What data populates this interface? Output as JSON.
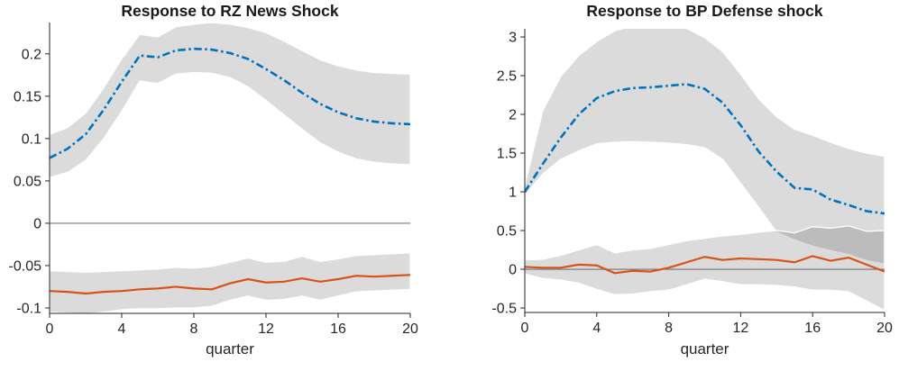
{
  "figure": {
    "background": "#ffffff",
    "axis_color": "#262626",
    "zero_line_color": "#555555",
    "band_fill": "rgba(0,0,0,0.14)",
    "band_edge": "#ffffff"
  },
  "chart_data": [
    {
      "type": "line",
      "title": "Response to RZ News Shock",
      "xlabel": "quarter",
      "legend": "none",
      "grid": false,
      "xlim": [
        0,
        20
      ],
      "ylim": [
        -0.1064,
        0.237
      ],
      "xticks": [
        0,
        4,
        8,
        12,
        16,
        20
      ],
      "xtick_labels": [
        "0",
        "4",
        "8",
        "12",
        "16",
        "20"
      ],
      "yticks": [
        -0.1,
        -0.05,
        0,
        0.05,
        0.1,
        0.15,
        0.2
      ],
      "ytick_labels": [
        "-0.1",
        "-0.05",
        "0",
        "0.05",
        "0.1",
        "0.15",
        "0.2"
      ],
      "zero_line": true,
      "x": [
        0,
        1,
        2,
        3,
        4,
        5,
        6,
        7,
        8,
        9,
        10,
        11,
        12,
        13,
        14,
        15,
        16,
        17,
        18,
        19,
        20
      ],
      "series": [
        {
          "name": "rz-news-irf-blue",
          "style": "dashdot",
          "color": "#0072BD",
          "width": 2.6,
          "values": [
            0.077,
            0.088,
            0.105,
            0.134,
            0.167,
            0.198,
            0.196,
            0.204,
            0.206,
            0.205,
            0.201,
            0.194,
            0.182,
            0.169,
            0.154,
            0.141,
            0.131,
            0.124,
            0.12,
            0.118,
            0.117
          ],
          "band_lo": [
            0.054,
            0.06,
            0.074,
            0.1,
            0.132,
            0.168,
            0.165,
            0.176,
            0.178,
            0.177,
            0.172,
            0.161,
            0.145,
            0.128,
            0.111,
            0.095,
            0.084,
            0.076,
            0.072,
            0.07,
            0.069
          ],
          "band_hi": [
            0.105,
            0.113,
            0.13,
            0.16,
            0.194,
            0.223,
            0.22,
            0.232,
            0.235,
            0.237,
            0.235,
            0.231,
            0.225,
            0.215,
            0.204,
            0.193,
            0.186,
            0.181,
            0.178,
            0.177,
            0.176
          ]
        },
        {
          "name": "rz-news-irf-orange",
          "style": "solid",
          "color": "#D95319",
          "width": 2.2,
          "values": [
            -0.08,
            -0.081,
            -0.083,
            -0.081,
            -0.08,
            -0.078,
            -0.077,
            -0.075,
            -0.077,
            -0.078,
            -0.071,
            -0.066,
            -0.07,
            -0.069,
            -0.065,
            -0.069,
            -0.066,
            -0.062,
            -0.063,
            -0.062,
            -0.061
          ],
          "band_lo": [
            -0.105,
            -0.106,
            -0.107,
            -0.105,
            -0.102,
            -0.101,
            -0.101,
            -0.1,
            -0.1,
            -0.098,
            -0.091,
            -0.086,
            -0.091,
            -0.09,
            -0.086,
            -0.091,
            -0.086,
            -0.081,
            -0.08,
            -0.079,
            -0.078
          ],
          "band_hi": [
            -0.056,
            -0.057,
            -0.058,
            -0.057,
            -0.056,
            -0.055,
            -0.054,
            -0.052,
            -0.053,
            -0.051,
            -0.046,
            -0.041,
            -0.046,
            -0.045,
            -0.039,
            -0.045,
            -0.042,
            -0.038,
            -0.037,
            -0.036,
            -0.035
          ]
        }
      ]
    },
    {
      "type": "line",
      "title": "Response to BP Defense shock",
      "xlabel": "quarter",
      "legend": "none",
      "grid": false,
      "xlim": [
        0,
        20
      ],
      "ylim": [
        -0.558,
        3.105
      ],
      "xticks": [
        0,
        4,
        8,
        12,
        16,
        20
      ],
      "xtick_labels": [
        "0",
        "4",
        "8",
        "12",
        "16",
        "20"
      ],
      "yticks": [
        -0.5,
        0,
        0.5,
        1,
        1.5,
        2,
        2.5,
        3
      ],
      "ytick_labels": [
        "-0.5",
        "0",
        "0.5",
        "1",
        "1.5",
        "2",
        "2.5",
        "3"
      ],
      "zero_line": true,
      "x": [
        0,
        1,
        2,
        3,
        4,
        5,
        6,
        7,
        8,
        9,
        10,
        11,
        12,
        13,
        14,
        15,
        16,
        17,
        18,
        19,
        20
      ],
      "series": [
        {
          "name": "bp-defense-irf-blue",
          "style": "dashdot",
          "color": "#0072BD",
          "width": 2.6,
          "values": [
            1.0,
            1.36,
            1.7,
            2.0,
            2.21,
            2.3,
            2.34,
            2.35,
            2.37,
            2.39,
            2.33,
            2.15,
            1.86,
            1.52,
            1.26,
            1.05,
            1.03,
            0.9,
            0.83,
            0.75,
            0.72
          ],
          "band_lo": [
            0.95,
            1.23,
            1.42,
            1.53,
            1.62,
            1.64,
            1.65,
            1.64,
            1.63,
            1.61,
            1.57,
            1.42,
            1.11,
            0.8,
            0.48,
            0.38,
            0.3,
            0.24,
            0.19,
            0.11,
            0.07
          ],
          "band_hi": [
            1.08,
            2.05,
            2.49,
            2.76,
            2.94,
            3.08,
            3.14,
            3.16,
            3.15,
            3.11,
            2.99,
            2.81,
            2.52,
            2.2,
            1.97,
            1.81,
            1.73,
            1.64,
            1.56,
            1.5,
            1.46
          ]
        },
        {
          "name": "bp-defense-irf-orange",
          "style": "solid",
          "color": "#D95319",
          "width": 2.2,
          "values": [
            0.03,
            0.02,
            0.02,
            0.06,
            0.05,
            -0.05,
            -0.02,
            -0.03,
            0.02,
            0.09,
            0.16,
            0.12,
            0.14,
            0.13,
            0.12,
            0.09,
            0.17,
            0.11,
            0.15,
            0.06,
            -0.03
          ],
          "band_lo": [
            -0.06,
            -0.12,
            -0.14,
            -0.18,
            -0.26,
            -0.33,
            -0.32,
            -0.29,
            -0.27,
            -0.2,
            -0.13,
            -0.16,
            -0.2,
            -0.2,
            -0.21,
            -0.23,
            -0.27,
            -0.27,
            -0.29,
            -0.41,
            -0.53
          ],
          "band_hi": [
            0.12,
            0.13,
            0.18,
            0.25,
            0.32,
            0.21,
            0.25,
            0.27,
            0.32,
            0.37,
            0.4,
            0.43,
            0.45,
            0.48,
            0.5,
            0.47,
            0.55,
            0.53,
            0.56,
            0.49,
            0.5
          ]
        }
      ]
    }
  ]
}
